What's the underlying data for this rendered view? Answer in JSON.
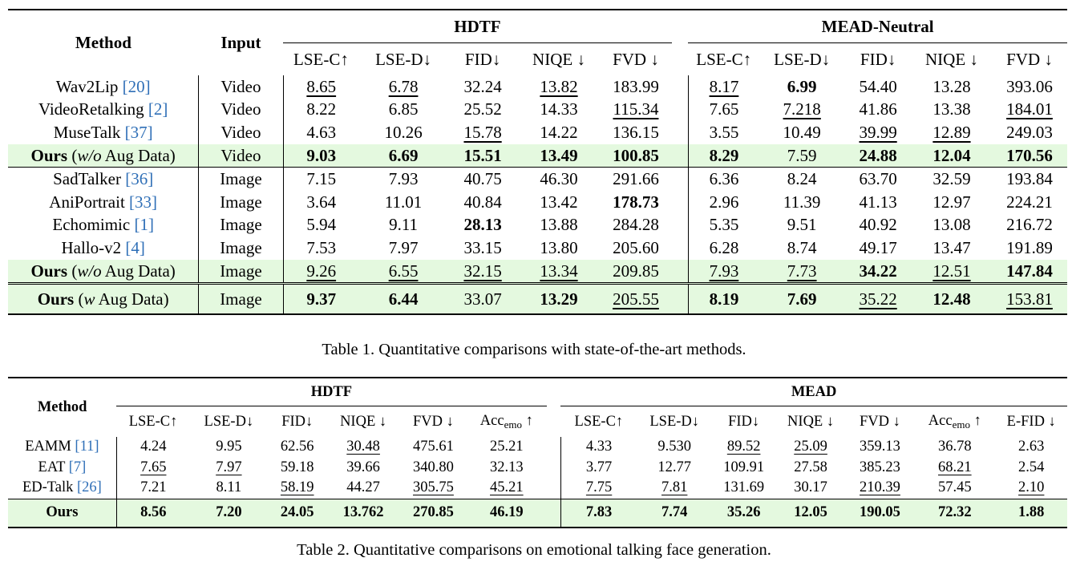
{
  "table1": {
    "header": {
      "method": "Method",
      "input": "Input",
      "group1": "HDTF",
      "group2": "MEAD-Neutral",
      "metrics": [
        "LSE-C↑",
        "LSE-D↓",
        "FID↓",
        "NIQE ↓",
        "FVD ↓"
      ]
    },
    "rows": [
      {
        "name": "Wav2Lip",
        "ref": "[20]",
        "input": "Video",
        "vals": [
          "8.65",
          "6.78",
          "32.24",
          "13.82",
          "183.99",
          "8.17",
          "6.99",
          "54.40",
          "13.28",
          "393.06"
        ],
        "bold": [
          6
        ],
        "under": [
          0,
          1,
          3,
          5
        ]
      },
      {
        "name": "VideoRetalking",
        "ref": "[2]",
        "input": "Video",
        "vals": [
          "8.22",
          "6.85",
          "25.52",
          "14.33",
          "115.34",
          "7.65",
          "7.218",
          "41.86",
          "13.38",
          "184.01"
        ],
        "bold": [],
        "under": [
          4,
          6,
          9
        ]
      },
      {
        "name": "MuseTalk",
        "ref": "[37]",
        "input": "Video",
        "vals": [
          "4.63",
          "10.26",
          "15.78",
          "14.22",
          "136.15",
          "3.55",
          "10.49",
          "39.99",
          "12.89",
          "249.03"
        ],
        "bold": [],
        "under": [
          2,
          7,
          8
        ]
      },
      {
        "name_bold": "Ours",
        "name_rest": "(w/o Aug Data)",
        "input": "Video",
        "vals": [
          "9.03",
          "6.69",
          "15.51",
          "13.49",
          "100.85",
          "8.29",
          "7.59",
          "24.88",
          "12.04",
          "170.56"
        ],
        "bold": [
          0,
          1,
          2,
          3,
          4,
          5,
          7,
          8,
          9
        ],
        "under": [],
        "green": true
      },
      {
        "name": "SadTalker",
        "ref": "[36]",
        "input": "Image",
        "vals": [
          "7.15",
          "7.93",
          "40.75",
          "46.30",
          "291.66",
          "6.36",
          "8.24",
          "63.70",
          "32.59",
          "193.84"
        ],
        "bold": [],
        "under": []
      },
      {
        "name": "AniPortrait",
        "ref": "[33]",
        "input": "Image",
        "vals": [
          "3.64",
          "11.01",
          "40.84",
          "13.42",
          "178.73",
          "2.96",
          "11.39",
          "41.13",
          "12.97",
          "224.21"
        ],
        "bold": [
          4
        ],
        "under": []
      },
      {
        "name": "Echomimic",
        "ref": "[1]",
        "input": "Image",
        "vals": [
          "5.94",
          "9.11",
          "28.13",
          "13.88",
          "284.28",
          "5.35",
          "9.51",
          "40.92",
          "13.08",
          "216.72"
        ],
        "bold": [
          2
        ],
        "under": []
      },
      {
        "name": "Hallo-v2",
        "ref": "[4]",
        "input": "Image",
        "vals": [
          "7.53",
          "7.97",
          "33.15",
          "13.80",
          "205.60",
          "6.28",
          "8.74",
          "49.17",
          "13.47",
          "191.89"
        ],
        "bold": [],
        "under": []
      },
      {
        "name_bold": "Ours",
        "name_rest": "(w/o Aug Data)",
        "input": "Image",
        "vals": [
          "9.26",
          "6.55",
          "32.15",
          "13.34",
          "209.85",
          "7.93",
          "7.73",
          "34.22",
          "12.51",
          "147.84"
        ],
        "bold": [
          7,
          9
        ],
        "under": [
          0,
          1,
          2,
          3,
          5,
          6,
          8
        ],
        "green": true
      },
      {
        "name_bold": "Ours",
        "name_rest": "(w Aug Data)",
        "input": "Image",
        "vals": [
          "9.37",
          "6.44",
          "33.07",
          "13.29",
          "205.55",
          "8.19",
          "7.69",
          "35.22",
          "12.48",
          "153.81"
        ],
        "bold": [
          0,
          1,
          3,
          5,
          6,
          8
        ],
        "under": [
          4,
          7,
          9
        ],
        "green": true
      }
    ],
    "caption": "Table 1. Quantitative comparisons with state-of-the-art methods."
  },
  "table2": {
    "header": {
      "method": "Method",
      "group1": "HDTF",
      "group2": "MEAD",
      "metrics1": [
        "LSE-C↑",
        "LSE-D↓",
        "FID↓",
        "NIQE ↓",
        "FVD ↓"
      ],
      "acc": "Acc",
      "acc_sub": "emo",
      "acc_arrow": " ↑",
      "metrics2": [
        "LSE-C↑",
        "LSE-D↓",
        "FID↓",
        "NIQE ↓",
        "FVD ↓"
      ],
      "efid": "E-FID ↓"
    },
    "rows": [
      {
        "name": "EAMM",
        "ref": "[11]",
        "vals": [
          "4.24",
          "9.95",
          "62.56",
          "30.48",
          "475.61",
          "25.21",
          "4.33",
          "9.530",
          "89.52",
          "25.09",
          "359.13",
          "36.78",
          "2.63"
        ],
        "under": [
          3,
          8,
          9
        ]
      },
      {
        "name": "EAT",
        "ref": "[7]",
        "vals": [
          "7.65",
          "7.97",
          "59.18",
          "39.66",
          "340.80",
          "32.13",
          "3.77",
          "12.77",
          "109.91",
          "27.58",
          "385.23",
          "68.21",
          "2.54"
        ],
        "under": [
          0,
          1,
          11
        ]
      },
      {
        "name": "ED-Talk",
        "ref": "[26]",
        "vals": [
          "7.21",
          "8.11",
          "58.19",
          "44.27",
          "305.75",
          "45.21",
          "7.75",
          "7.81",
          "131.69",
          "30.17",
          "210.39",
          "57.45",
          "2.10"
        ],
        "under": [
          2,
          4,
          5,
          6,
          7,
          10,
          12
        ]
      }
    ],
    "ours": {
      "name": "Ours",
      "vals": [
        "8.56",
        "7.20",
        "24.05",
        "13.762",
        "270.85",
        "46.19",
        "7.83",
        "7.74",
        "35.26",
        "12.05",
        "190.05",
        "72.32",
        "1.88"
      ]
    },
    "caption": "Table 2. Quantitative comparisons on emotional talking face generation."
  }
}
